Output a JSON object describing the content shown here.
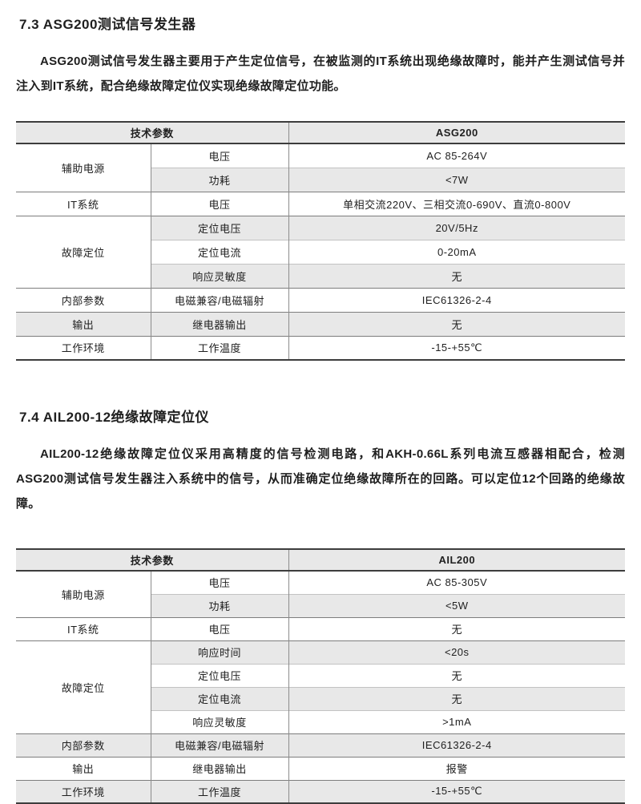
{
  "colors": {
    "band": "#e8e8e8",
    "border_dark": "#3d3d3d",
    "border_group": "#7d7d7d",
    "border_inner": "#c2c2c2",
    "border_vertical": "#8c8c8c",
    "text": "#1f1f1f"
  },
  "sections": [
    {
      "heading": "7.3 ASG200测试信号发生器",
      "paragraph": "ASG200测试信号发生器主要用于产生定位信号，在被监测的IT系统出现绝缘故障时，能并产生测试信号并注入到IT系统，配合绝缘故障定位仪实现绝缘故障定位功能。",
      "table": {
        "header_param": "技术参数",
        "model": "ASG200",
        "groups": [
          {
            "category": "辅助电源",
            "rows": [
              {
                "param": "电压",
                "value": "AC 85-264V"
              },
              {
                "param": "功耗",
                "value": "<7W"
              }
            ]
          },
          {
            "category": "IT系统",
            "rows": [
              {
                "param": "电压",
                "value": "单相交流220V、三相交流0-690V、直流0-800V"
              }
            ]
          },
          {
            "category": "故障定位",
            "rows": [
              {
                "param": "定位电压",
                "value": "20V/5Hz"
              },
              {
                "param": "定位电流",
                "value": "0-20mA"
              },
              {
                "param": "响应灵敏度",
                "value": "无"
              }
            ]
          },
          {
            "category": "内部参数",
            "rows": [
              {
                "param": "电磁兼容/电磁辐射",
                "value": "IEC61326-2-4"
              }
            ]
          },
          {
            "category": "输出",
            "rows": [
              {
                "param": "继电器输出",
                "value": "无"
              }
            ]
          },
          {
            "category": "工作环境",
            "rows": [
              {
                "param": "工作温度",
                "value": "-15-+55℃"
              }
            ]
          }
        ]
      }
    },
    {
      "heading": "7.4 AIL200-12绝缘故障定位仪",
      "paragraph": "AIL200-12绝缘故障定位仪采用高精度的信号检测电路，和AKH-0.66L系列电流互感器相配合，检测ASG200测试信号发生器注入系统中的信号，从而准确定位绝缘故障所在的回路。可以定位12个回路的绝缘故障。",
      "table": {
        "header_param": "技术参数",
        "model": "AIL200",
        "groups": [
          {
            "category": "辅助电源",
            "rows": [
              {
                "param": "电压",
                "value": "AC 85-305V"
              },
              {
                "param": "功耗",
                "value": "<5W"
              }
            ]
          },
          {
            "category": "IT系统",
            "rows": [
              {
                "param": "电压",
                "value": "无"
              }
            ]
          },
          {
            "category": "故障定位",
            "rows": [
              {
                "param": "响应时间",
                "value": "<20s"
              },
              {
                "param": "定位电压",
                "value": "无"
              },
              {
                "param": "定位电流",
                "value": "无"
              },
              {
                "param": "响应灵敏度",
                "value": ">1mA"
              }
            ]
          },
          {
            "category": "内部参数",
            "rows": [
              {
                "param": "电磁兼容/电磁辐射",
                "value": "IEC61326-2-4"
              }
            ]
          },
          {
            "category": "输出",
            "rows": [
              {
                "param": "继电器输出",
                "value": "报警"
              }
            ]
          },
          {
            "category": "工作环境",
            "rows": [
              {
                "param": "工作温度",
                "value": "-15-+55℃"
              }
            ]
          }
        ]
      }
    }
  ]
}
